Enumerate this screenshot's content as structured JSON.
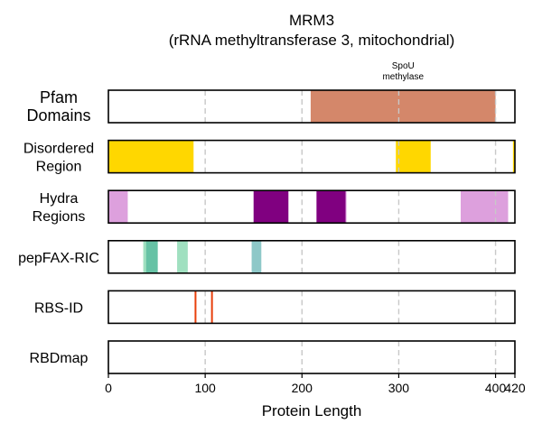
{
  "chart_data": {
    "type": "domain-tracks",
    "title": "MRM3",
    "subtitle": "(rRNA methyltransferase 3, mitochondrial)",
    "xlabel": "Protein Length",
    "xlim": [
      0,
      420
    ],
    "xticks": [
      0,
      100,
      200,
      300,
      400,
      420
    ],
    "grid_x": [
      100,
      200,
      300,
      400
    ],
    "tracks": [
      {
        "label": [
          "Pfam",
          "Domains"
        ],
        "segments": [
          {
            "start": 209,
            "end": 400,
            "color": "#d4876a",
            "annotation": [
              "SpoU",
              "methylase"
            ]
          }
        ]
      },
      {
        "label": [
          "Disordered",
          "Region"
        ],
        "segments": [
          {
            "start": 0,
            "end": 88,
            "color": "#ffd700"
          },
          {
            "start": 297,
            "end": 333,
            "color": "#ffd700"
          },
          {
            "start": 418,
            "end": 420,
            "color": "#ffd700"
          }
        ]
      },
      {
        "label": [
          "Hydra",
          "Regions"
        ],
        "segments": [
          {
            "start": 0,
            "end": 20,
            "color": "#dda0dd"
          },
          {
            "start": 150,
            "end": 186,
            "color": "#800080"
          },
          {
            "start": 215,
            "end": 245,
            "color": "#800080"
          },
          {
            "start": 245,
            "end": 246,
            "color": "#dda0dd"
          },
          {
            "start": 364,
            "end": 413,
            "color": "#dda0dd"
          }
        ]
      },
      {
        "label": [
          "pepFAX-RIC"
        ],
        "segments": [
          {
            "start": 36,
            "end": 40,
            "color": "#a0e0c0"
          },
          {
            "start": 39,
            "end": 51,
            "color": "#66c2a5"
          },
          {
            "start": 71,
            "end": 82,
            "color": "#a0e0c0"
          },
          {
            "start": 148,
            "end": 158,
            "color": "#8ec8c8"
          }
        ]
      },
      {
        "label": [
          "RBS-ID"
        ],
        "lines": [
          {
            "pos": 90,
            "color": "#e8400c"
          },
          {
            "pos": 107,
            "color": "#e8400c"
          }
        ]
      },
      {
        "label": [
          "RBDmap"
        ],
        "segments": []
      }
    ]
  }
}
